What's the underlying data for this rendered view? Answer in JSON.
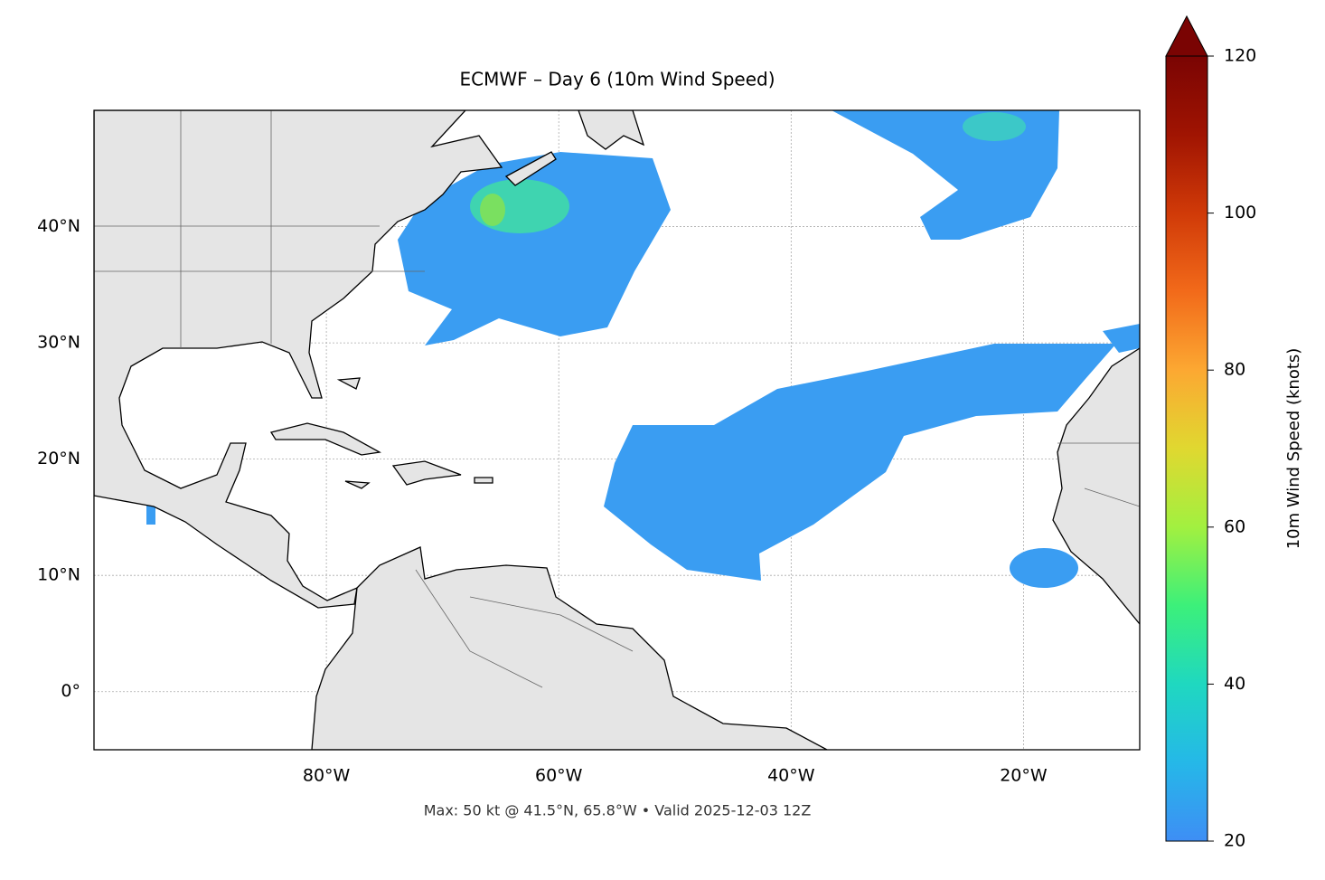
{
  "map": {
    "title": "ECMWF – Day 6 (10m Wind Speed)",
    "footer": "Max: 50 kt @ 41.5°N, 65.8°W • Valid 2025-12-03 12Z",
    "xlim": [
      -100,
      -10
    ],
    "ylim": [
      -5,
      50
    ],
    "xticks": [
      {
        "value": -80,
        "label": "80°W"
      },
      {
        "value": -60,
        "label": "60°W"
      },
      {
        "value": -40,
        "label": "40°W"
      },
      {
        "value": -20,
        "label": "20°W"
      }
    ],
    "yticks": [
      {
        "value": 0,
        "label": "0°"
      },
      {
        "value": 10,
        "label": "10°N"
      },
      {
        "value": 20,
        "label": "20°N"
      },
      {
        "value": 30,
        "label": "30°N"
      },
      {
        "value": 40,
        "label": "40°N"
      }
    ],
    "grid": true,
    "colorbar": {
      "label": "10m Wind Speed (knots)",
      "lim": [
        20,
        120
      ],
      "ticks": [
        20,
        40,
        60,
        80,
        100,
        120
      ]
    }
  }
}
